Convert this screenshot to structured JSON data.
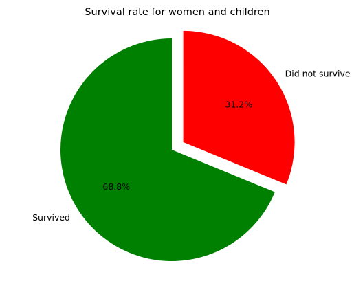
{
  "chart_data": {
    "type": "pie",
    "title": "Survival rate for women and children",
    "slices": [
      {
        "label": "Survived",
        "value": 68.8,
        "pct_label": "68.8%",
        "color": "#008000",
        "exploded": false
      },
      {
        "label": "Did not survive",
        "value": 31.2,
        "pct_label": "31.2%",
        "color": "#ff0000",
        "exploded": true
      }
    ],
    "start_angle_deg": 90,
    "direction": "counterclockwise",
    "legend": "none"
  }
}
